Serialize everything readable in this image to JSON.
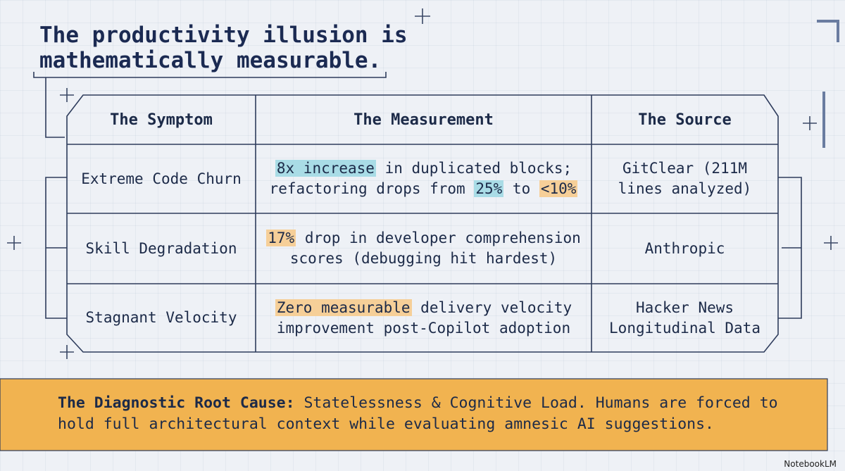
{
  "header": {
    "title": "The productivity illusion is mathematically measurable."
  },
  "table": {
    "columns": [
      "The Symptom",
      "The Measurement",
      "The Source"
    ],
    "rows": [
      {
        "symptom": "Extreme Code Churn",
        "measurement": [
          {
            "text": "8x increase",
            "highlight": "#a9dce6"
          },
          {
            "text": " in duplicated blocks; refactoring drops from "
          },
          {
            "text": "25%",
            "highlight": "#a9dce6"
          },
          {
            "text": " to "
          },
          {
            "text": "<10%",
            "highlight": "#f6cf98"
          }
        ],
        "source": "GitClear (211M lines analyzed)"
      },
      {
        "symptom": "Skill Degradation",
        "measurement": [
          {
            "text": "17%",
            "highlight": "#f6cf98"
          },
          {
            "text": " drop in developer comprehension scores (debugging hit hardest)"
          }
        ],
        "source": "Anthropic"
      },
      {
        "symptom": "Stagnant Velocity",
        "measurement": [
          {
            "text": "Zero measurable",
            "highlight": "#f6cf98"
          },
          {
            "text": " delivery velocity improvement post-Copilot adoption"
          }
        ],
        "source": "Hacker News Longitudinal Data"
      }
    ]
  },
  "callout": {
    "lead": "The Diagnostic Root Cause:",
    "text": " Statelessness & Cognitive Load. Humans are forced to hold full architectural context while evaluating amnesic AI suggestions.",
    "color": "#f1b350"
  },
  "footer": {
    "brand": "NotebookLM"
  }
}
